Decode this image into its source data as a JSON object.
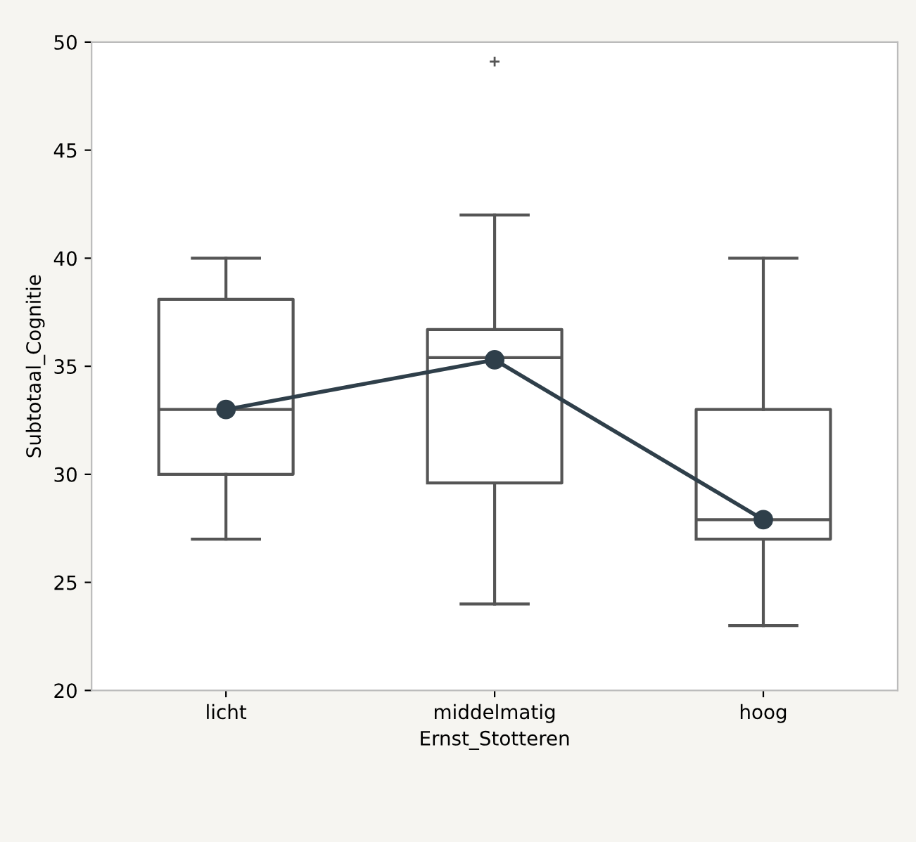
{
  "chart_data": {
    "type": "box",
    "xlabel": "Ernst_Stotteren",
    "ylabel": "Subtotaal_Cognitie",
    "categories": [
      "licht",
      "middelmatig",
      "hoog"
    ],
    "boxes": [
      {
        "low": 27,
        "q1": 30,
        "median": 33,
        "q3": 38.1,
        "high": 40
      },
      {
        "low": 24,
        "q1": 29.6,
        "median": 35.4,
        "q3": 36.7,
        "high": 42,
        "outliers": [
          49.1
        ]
      },
      {
        "low": 23,
        "q1": 27,
        "median": 27.9,
        "q3": 33,
        "high": 40
      }
    ],
    "series": [
      {
        "type": "line",
        "color": "#2f3f4a",
        "values": [
          33,
          35.3,
          27.9
        ],
        "marker": "circle"
      }
    ],
    "ylim": [
      20,
      50
    ],
    "yticks": [
      20,
      25,
      30,
      35,
      40,
      45,
      50
    ],
    "grid": false
  }
}
